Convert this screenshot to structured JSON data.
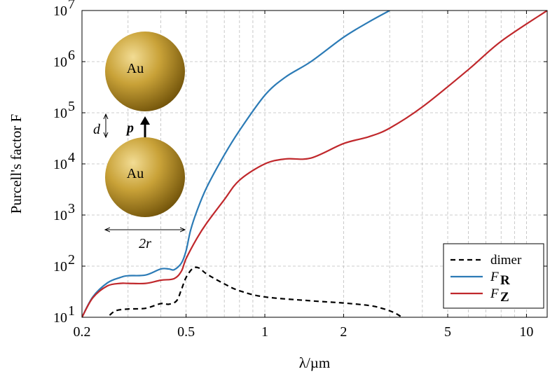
{
  "chart_data": {
    "type": "line",
    "title": "",
    "xlabel": "λ/µm",
    "ylabel": "Purcell's factor F",
    "x_scale": "log",
    "y_scale": "log",
    "xlim": [
      0.2,
      12
    ],
    "ylim": [
      10,
      10000000
    ],
    "grid": true,
    "legend_position": "bottom-right",
    "x_ticks": [
      {
        "value": 0.2,
        "label": "0.2"
      },
      {
        "value": 0.5,
        "label": "0.5"
      },
      {
        "value": 1,
        "label": "1"
      },
      {
        "value": 2,
        "label": "2"
      },
      {
        "value": 5,
        "label": "5"
      },
      {
        "value": 10,
        "label": "10"
      }
    ],
    "y_ticks": [
      {
        "value": 10,
        "base": "10",
        "exp": "1"
      },
      {
        "value": 100,
        "base": "10",
        "exp": "2"
      },
      {
        "value": 1000,
        "base": "10",
        "exp": "3"
      },
      {
        "value": 10000,
        "base": "10",
        "exp": "4"
      },
      {
        "value": 100000,
        "base": "10",
        "exp": "5"
      },
      {
        "value": 1000000,
        "base": "10",
        "exp": "6"
      },
      {
        "value": 10000000,
        "base": "10",
        "exp": "7"
      }
    ],
    "series": [
      {
        "name": "dimer",
        "color": "#000000",
        "dash": true,
        "points": [
          [
            0.255,
            11
          ],
          [
            0.27,
            13.5
          ],
          [
            0.3,
            14.5
          ],
          [
            0.35,
            15
          ],
          [
            0.4,
            18.5
          ],
          [
            0.43,
            18
          ],
          [
            0.46,
            21
          ],
          [
            0.48,
            35
          ],
          [
            0.5,
            60
          ],
          [
            0.53,
            90
          ],
          [
            0.56,
            92
          ],
          [
            0.6,
            70
          ],
          [
            0.7,
            45
          ],
          [
            0.8,
            33
          ],
          [
            1.0,
            25
          ],
          [
            1.5,
            21
          ],
          [
            2.0,
            19
          ],
          [
            2.5,
            17
          ],
          [
            2.8,
            15
          ],
          [
            3.1,
            12.5
          ],
          [
            3.35,
            10
          ]
        ]
      },
      {
        "name": "F_R",
        "color": "#2c7bb6",
        "dash": false,
        "points": [
          [
            0.2,
            10
          ],
          [
            0.22,
            25
          ],
          [
            0.25,
            47
          ],
          [
            0.28,
            60
          ],
          [
            0.3,
            65
          ],
          [
            0.35,
            67
          ],
          [
            0.4,
            88
          ],
          [
            0.43,
            88
          ],
          [
            0.45,
            85
          ],
          [
            0.48,
            115
          ],
          [
            0.5,
            200
          ],
          [
            0.52,
            500
          ],
          [
            0.55,
            1200
          ],
          [
            0.6,
            3500
          ],
          [
            0.7,
            15000
          ],
          [
            0.8,
            45000
          ],
          [
            1.0,
            220000
          ],
          [
            1.2,
            500000
          ],
          [
            1.5,
            1000000
          ],
          [
            2.0,
            3000000
          ],
          [
            2.5,
            6000000
          ],
          [
            3.0,
            10000000
          ]
        ]
      },
      {
        "name": "F_Z",
        "color": "#c0282c",
        "dash": false,
        "points": [
          [
            0.2,
            10
          ],
          [
            0.22,
            24
          ],
          [
            0.25,
            41
          ],
          [
            0.28,
            46
          ],
          [
            0.3,
            46
          ],
          [
            0.35,
            46
          ],
          [
            0.4,
            53
          ],
          [
            0.45,
            57
          ],
          [
            0.48,
            80
          ],
          [
            0.5,
            140
          ],
          [
            0.55,
            350
          ],
          [
            0.6,
            700
          ],
          [
            0.7,
            2000
          ],
          [
            0.8,
            4800
          ],
          [
            1.0,
            10000
          ],
          [
            1.2,
            12500
          ],
          [
            1.5,
            13000
          ],
          [
            2.0,
            25000
          ],
          [
            2.5,
            34000
          ],
          [
            3.0,
            50000
          ],
          [
            4.0,
            130000
          ],
          [
            6.0,
            700000
          ],
          [
            8.0,
            2500000
          ],
          [
            12.0,
            10000000
          ]
        ]
      }
    ],
    "legend": [
      {
        "label": "dimer",
        "sub": ""
      },
      {
        "label": "F",
        "sub": "R"
      },
      {
        "label": "F",
        "sub": "Z"
      }
    ],
    "inset": {
      "top_sphere_label": "Au",
      "bottom_sphere_label": "Au",
      "gap_label": "d",
      "dipole_label": "p",
      "diameter_label": "2r"
    },
    "colors": {
      "grid": "#bcbcbc",
      "sphere_light": "#f2dc94",
      "sphere_mid": "#c9a238",
      "sphere_dark": "#6e5008"
    }
  }
}
